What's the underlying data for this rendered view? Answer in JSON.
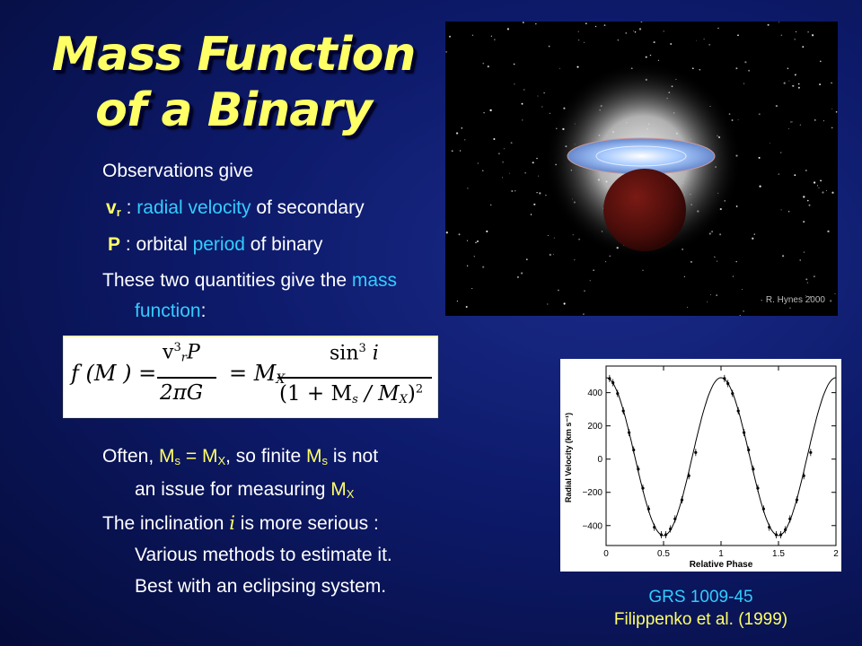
{
  "slide": {
    "title_line1": "Mass Function",
    "title_line2": "of a Binary",
    "observations_intro": "Observations give",
    "vr_symbol": "v",
    "vr_sub": "r",
    "vr_sep": " : ",
    "vr_term": "radial velocity",
    "vr_rest": " of secondary",
    "p_symbol": "P",
    "p_sep": " : orbital ",
    "p_term": "period",
    "p_rest": " of binary",
    "quantities_text": "These two quantities give the ",
    "quantities_term_1": "mass",
    "quantities_term_2": "function",
    "quantities_end": ":",
    "often_prefix": "Often, ",
    "often_ms": "M",
    "often_ms_sub": "s",
    "often_eq": " = ",
    "often_mx": "M",
    "often_mx_sub": "X",
    "often_mid": ", so finite ",
    "often_ms2": "M",
    "often_ms2_sub": "s",
    "often_end": " is not",
    "often_line2": "an issue for measuring ",
    "often_mx2": "M",
    "often_mx2_sub": "X",
    "incl_prefix": "The inclination ",
    "incl_symbol": "i",
    "incl_end": "  is more serious :",
    "incl_line2": "Various methods to estimate it.",
    "incl_line3": "Best with an eclipsing system.",
    "caption_line1": "GRS 1009-45",
    "caption_line2": "Filippenko et al. (1999)",
    "image_credit": "R. Hynes 2000"
  },
  "equation": {
    "lhs": "f (M ) =",
    "num1": "P",
    "num1_v": "v",
    "num1_sup": "3",
    "num1_sub": "r",
    "den1": "2πG",
    "mid": "= M",
    "mid_sub": "X",
    "num2": "sin",
    "num2_sup": "3",
    "num2_i": " i",
    "den2_open": "(1 + M",
    "den2_s": "s",
    "den2_mid": " / M",
    "den2_x": "X",
    "den2_close": ")",
    "den2_sup": "2"
  },
  "chart_data": {
    "type": "scatter",
    "title": "",
    "xlabel": "Relative Phase",
    "ylabel": "Radial Velocity (km s⁻¹)",
    "xlim": [
      0,
      2
    ],
    "ylim": [
      -520,
      560
    ],
    "xticks": [
      "0",
      "0.5",
      "1",
      "1.5",
      "2"
    ],
    "yticks": [
      "400",
      "200",
      "0",
      "−200",
      "−400"
    ],
    "curve": {
      "amplitude": 475,
      "offset": 15
    },
    "x": [
      0.03,
      0.06,
      0.1,
      0.15,
      0.2,
      0.24,
      0.28,
      0.32,
      0.37,
      0.42,
      0.48,
      0.52,
      0.56,
      0.6,
      0.66,
      0.72,
      0.78,
      1.03,
      1.06,
      1.1,
      1.15,
      1.2,
      1.24,
      1.28,
      1.32,
      1.37,
      1.42,
      1.48,
      1.52,
      1.56,
      1.6,
      1.66,
      1.72,
      1.78
    ],
    "y": [
      485,
      460,
      395,
      290,
      160,
      55,
      -60,
      -175,
      -300,
      -410,
      -455,
      -455,
      -420,
      -360,
      -245,
      -100,
      40,
      485,
      455,
      395,
      290,
      160,
      55,
      -60,
      -175,
      -300,
      -410,
      -455,
      -455,
      -425,
      -360,
      -245,
      -100,
      40
    ]
  }
}
